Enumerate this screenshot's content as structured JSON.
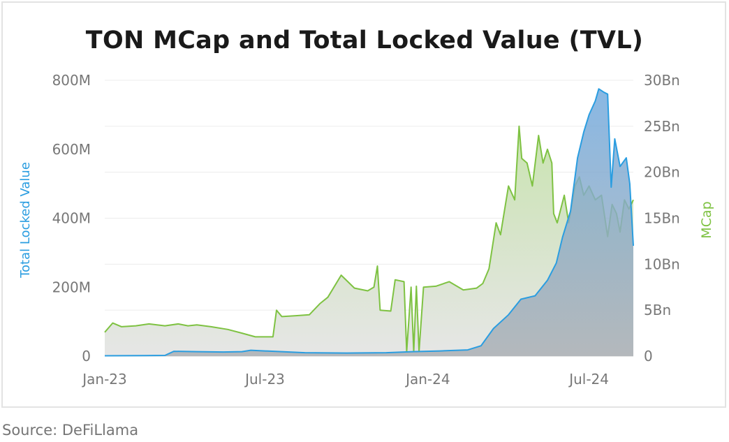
{
  "chart_data": {
    "type": "area",
    "title": "TON MCap and Total Locked Value (TVL)",
    "source": "Source: DeFiLlama",
    "x_axis": {
      "type": "date",
      "range": [
        "2023-01-01",
        "2024-08-20"
      ],
      "ticks": [
        {
          "date": "2023-01-01",
          "label": "Jan-23"
        },
        {
          "date": "2023-07-01",
          "label": "Jul-23"
        },
        {
          "date": "2024-01-01",
          "label": "Jan-24"
        },
        {
          "date": "2024-07-01",
          "label": "Jul-24"
        }
      ]
    },
    "y_left": {
      "label": "Total Locked Value",
      "ylim": [
        0,
        800000000
      ],
      "ticks": [
        {
          "value": 0,
          "label": "0"
        },
        {
          "value": 200000000,
          "label": "200M"
        },
        {
          "value": 400000000,
          "label": "400M"
        },
        {
          "value": 600000000,
          "label": "600M"
        },
        {
          "value": 800000000,
          "label": "800M"
        }
      ]
    },
    "y_right": {
      "label": "MCap",
      "ylim": [
        0,
        30000000000
      ],
      "ticks": [
        {
          "value": 0,
          "label": "0"
        },
        {
          "value": 5000000000,
          "label": "5Bn"
        },
        {
          "value": 10000000000,
          "label": "10Bn"
        },
        {
          "value": 15000000000,
          "label": "15Bn"
        },
        {
          "value": 20000000000,
          "label": "20Bn"
        },
        {
          "value": 25000000000,
          "label": "25Bn"
        },
        {
          "value": 30000000000,
          "label": "30Bn"
        }
      ]
    },
    "grid": true,
    "legend": "none",
    "series": [
      {
        "name": "MCap",
        "axis": "right",
        "color": "#7ec242",
        "fill_gradient": [
          "#c9e3b0",
          "#e6e6e6"
        ],
        "points": [
          [
            "2023-01-01",
            2600000000.0
          ],
          [
            "2023-01-10",
            3600000000.0
          ],
          [
            "2023-01-20",
            3200000000.0
          ],
          [
            "2023-02-05",
            3300000000.0
          ],
          [
            "2023-02-20",
            3500000000.0
          ],
          [
            "2023-03-10",
            3300000000.0
          ],
          [
            "2023-03-25",
            3500000000.0
          ],
          [
            "2023-04-05",
            3300000000.0
          ],
          [
            "2023-04-15",
            3400000000.0
          ],
          [
            "2023-05-01",
            3200000000.0
          ],
          [
            "2023-05-20",
            2900000000.0
          ],
          [
            "2023-06-05",
            2500000000.0
          ],
          [
            "2023-06-20",
            2100000000.0
          ],
          [
            "2023-07-10",
            2100000000.0
          ],
          [
            "2023-07-14",
            5000000000.0
          ],
          [
            "2023-07-20",
            4300000000.0
          ],
          [
            "2023-08-05",
            4400000000.0
          ],
          [
            "2023-08-20",
            4500000000.0
          ],
          [
            "2023-09-01",
            5700000000.0
          ],
          [
            "2023-09-10",
            6400000000.0
          ],
          [
            "2023-09-25",
            8800000000.0
          ],
          [
            "2023-10-10",
            7400000000.0
          ],
          [
            "2023-10-25",
            7100000000.0
          ],
          [
            "2023-11-01",
            7500000000.0
          ],
          [
            "2023-11-05",
            9800000000.0
          ],
          [
            "2023-11-08",
            5000000000.0
          ],
          [
            "2023-11-20",
            4900000000.0
          ],
          [
            "2023-11-25",
            8300000000.0
          ],
          [
            "2023-12-05",
            8100000000.0
          ],
          [
            "2023-12-08",
            500000000.0
          ],
          [
            "2023-12-13",
            7500000000.0
          ],
          [
            "2023-12-16",
            500000000.0
          ],
          [
            "2023-12-19",
            7600000000.0
          ],
          [
            "2023-12-22",
            500000000.0
          ],
          [
            "2023-12-27",
            7500000000.0
          ],
          [
            "2024-01-10",
            7600000000.0
          ],
          [
            "2024-01-25",
            8100000000.0
          ],
          [
            "2024-02-10",
            7200000000.0
          ],
          [
            "2024-02-25",
            7400000000.0
          ],
          [
            "2024-03-03",
            7900000000.0
          ],
          [
            "2024-03-10",
            9500000000.0
          ],
          [
            "2024-03-18",
            14500000000.0
          ],
          [
            "2024-03-23",
            13200000000.0
          ],
          [
            "2024-04-01",
            18500000000.0
          ],
          [
            "2024-04-08",
            17000000000.0
          ],
          [
            "2024-04-13",
            25000000000.0
          ],
          [
            "2024-04-16",
            21500000000.0
          ],
          [
            "2024-04-22",
            21000000000.0
          ],
          [
            "2024-04-28",
            18500000000.0
          ],
          [
            "2024-05-05",
            24000000000.0
          ],
          [
            "2024-05-10",
            21000000000.0
          ],
          [
            "2024-05-15",
            22500000000.0
          ],
          [
            "2024-05-20",
            21000000000.0
          ],
          [
            "2024-05-22",
            15500000000.0
          ],
          [
            "2024-05-26",
            14500000000.0
          ],
          [
            "2024-06-03",
            17500000000.0
          ],
          [
            "2024-06-08",
            14500000000.0
          ],
          [
            "2024-06-15",
            18500000000.0
          ],
          [
            "2024-06-20",
            19500000000.0
          ],
          [
            "2024-06-25",
            17500000000.0
          ],
          [
            "2024-07-01",
            18500000000.0
          ],
          [
            "2024-07-08",
            17000000000.0
          ],
          [
            "2024-07-15",
            17500000000.0
          ],
          [
            "2024-07-22",
            13000000000.0
          ],
          [
            "2024-07-27",
            16500000000.0
          ],
          [
            "2024-08-01",
            15500000000.0
          ],
          [
            "2024-08-05",
            13500000000.0
          ],
          [
            "2024-08-10",
            17000000000.0
          ],
          [
            "2024-08-15",
            16000000000.0
          ],
          [
            "2024-08-20",
            17000000000.0
          ]
        ]
      },
      {
        "name": "Total Locked Value",
        "axis": "left",
        "color": "#2a9de0",
        "fill_gradient": [
          "#6fa8dd",
          "#a9aeb3"
        ],
        "points": [
          [
            "2023-01-01",
            1000000.0
          ],
          [
            "2023-02-15",
            1500000.0
          ],
          [
            "2023-03-10",
            2000000.0
          ],
          [
            "2023-03-20",
            14000000.0
          ],
          [
            "2023-04-15",
            13000000.0
          ],
          [
            "2023-05-15",
            12000000.0
          ],
          [
            "2023-06-05",
            13000000.0
          ],
          [
            "2023-06-15",
            17000000.0
          ],
          [
            "2023-07-01",
            15000000.0
          ],
          [
            "2023-08-15",
            10000000.0
          ],
          [
            "2023-10-01",
            9000000.0
          ],
          [
            "2023-11-15",
            10000000.0
          ],
          [
            "2023-12-15",
            13000000.0
          ],
          [
            "2024-01-15",
            15000000.0
          ],
          [
            "2024-02-15",
            18000000.0
          ],
          [
            "2024-03-01",
            30000000.0
          ],
          [
            "2024-03-15",
            80000000.0
          ],
          [
            "2024-04-01",
            120000000.0
          ],
          [
            "2024-04-15",
            165000000.0
          ],
          [
            "2024-05-01",
            175000000.0
          ],
          [
            "2024-05-15",
            220000000.0
          ],
          [
            "2024-05-25",
            270000000.0
          ],
          [
            "2024-06-01",
            345000000.0
          ],
          [
            "2024-06-10",
            420000000.0
          ],
          [
            "2024-06-18",
            575000000.0
          ],
          [
            "2024-06-25",
            650000000.0
          ],
          [
            "2024-07-01",
            700000000.0
          ],
          [
            "2024-07-08",
            740000000.0
          ],
          [
            "2024-07-12",
            775000000.0
          ],
          [
            "2024-07-18",
            765000000.0
          ],
          [
            "2024-07-22",
            760000000.0
          ],
          [
            "2024-07-26",
            490000000.0
          ],
          [
            "2024-07-30",
            630000000.0
          ],
          [
            "2024-08-05",
            550000000.0
          ],
          [
            "2024-08-12",
            575000000.0
          ],
          [
            "2024-08-16",
            500000000.0
          ],
          [
            "2024-08-20",
            320000000.0
          ]
        ]
      }
    ]
  }
}
